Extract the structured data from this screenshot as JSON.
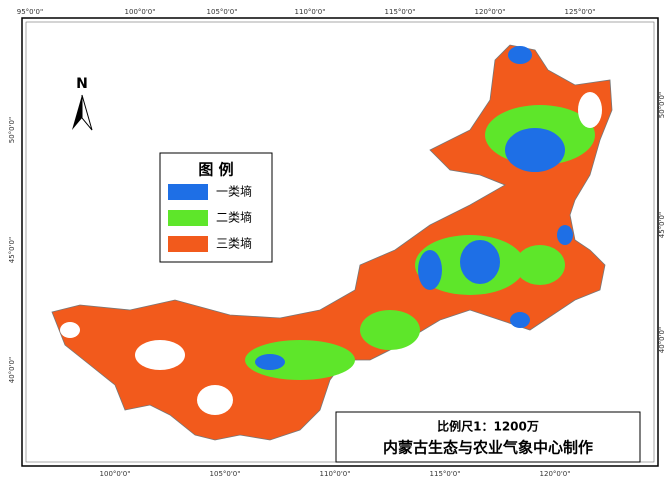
{
  "map": {
    "top_labels": [
      "95°0'0\"",
      "100°0'0\"",
      "105°0'0\"",
      "110°0'0\"",
      "115°0'0\"",
      "120°0'0\"",
      "125°0'0\""
    ],
    "bottom_labels": [
      "100°0'0\"",
      "105°0'0\"",
      "110°0'0\"",
      "115°0'0\"",
      "120°0'0\""
    ],
    "left_labels": [
      "50°0'0\"",
      "45°0'0\"",
      "40°0'0\""
    ],
    "right_labels": [
      "50°0'0\"",
      "45°0'0\"",
      "40°0'0\""
    ],
    "north": "N",
    "legend": {
      "title": "图 例",
      "items": [
        {
          "label": "一类墒",
          "color": "#1e6fe6"
        },
        {
          "label": "二类墒",
          "color": "#5ee62a"
        },
        {
          "label": "三类墒",
          "color": "#f25a1c"
        }
      ]
    },
    "scale": "比例尺1：1200万",
    "producer": "内蒙古生态与农业气象中心制作"
  }
}
